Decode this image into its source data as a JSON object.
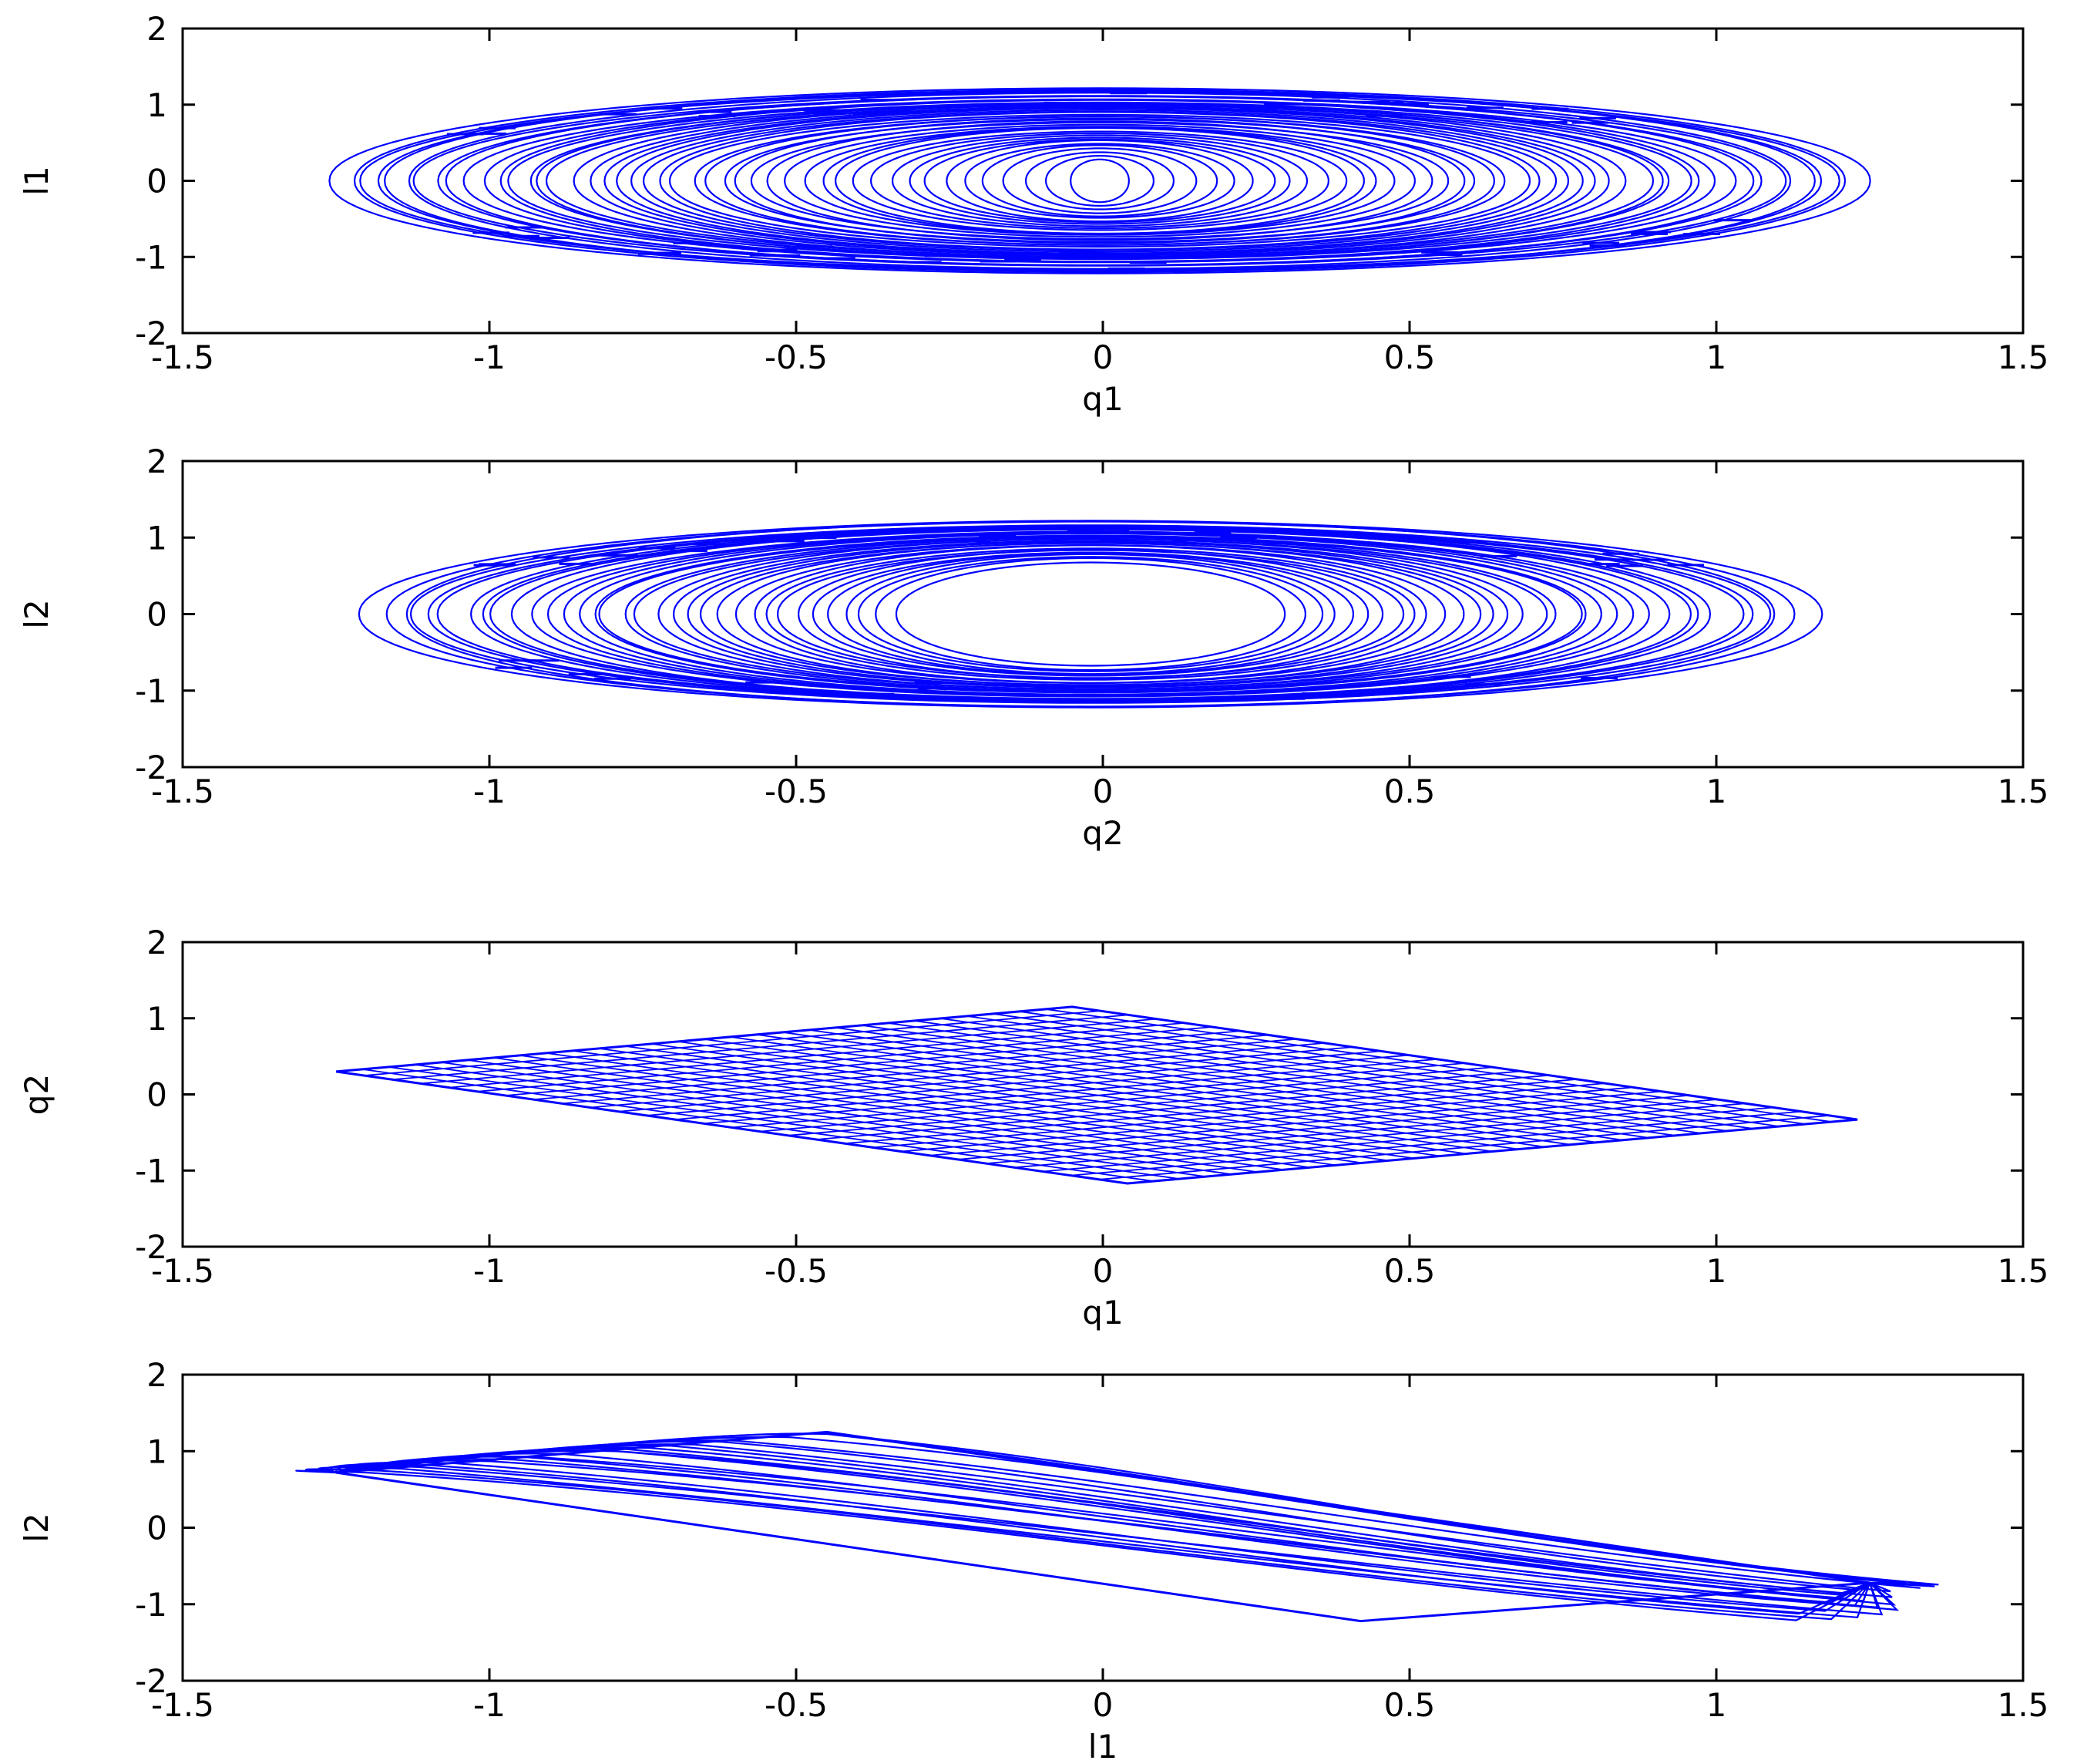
{
  "chart_data": [
    {
      "type": "line",
      "title": "",
      "xlabel": "q1",
      "ylabel": "l1",
      "xlim": [
        -1.5,
        1.5
      ],
      "ylim": [
        -2,
        2
      ],
      "xticks": [
        -1.5,
        -1,
        -0.5,
        0,
        0.5,
        1,
        1.5
      ],
      "xticklabels": [
        "-1.5",
        "-1",
        "-0.5",
        "0",
        "0.5",
        "1",
        "1.5"
      ],
      "yticks": [
        -2,
        -1,
        0,
        1,
        2
      ],
      "yticklabels": [
        "-2",
        "-1",
        "0",
        "1",
        "2"
      ],
      "grid": false,
      "color": "#0000ff",
      "series": [
        {
          "pattern": "nested ellipses filling the region",
          "x_range": [
            -1.25,
            1.24
          ],
          "y_range": [
            -1.22,
            1.22
          ],
          "x": [
            0,
            0.62,
            1.0,
            1.24,
            1.0,
            0.62,
            0,
            -0.62,
            -1.0,
            -1.25,
            -1.0,
            -0.62,
            0
          ],
          "y": [
            1.22,
            1.05,
            0.71,
            0,
            -0.71,
            -1.05,
            -1.22,
            -1.05,
            -0.71,
            0,
            0.71,
            1.05,
            1.22
          ]
        }
      ]
    },
    {
      "type": "line",
      "title": "",
      "xlabel": "q2",
      "ylabel": "l2",
      "xlim": [
        -1.5,
        1.5
      ],
      "ylim": [
        -2,
        2
      ],
      "xticks": [
        -1.5,
        -1,
        -0.5,
        0,
        0.5,
        1,
        1.5
      ],
      "xticklabels": [
        "-1.5",
        "-1",
        "-0.5",
        "0",
        "0.5",
        "1",
        "1.5"
      ],
      "yticks": [
        -2,
        -1,
        0,
        1,
        2
      ],
      "yticklabels": [
        "-2",
        "-1",
        "0",
        "1",
        "2"
      ],
      "grid": false,
      "color": "#0000ff",
      "series": [
        {
          "pattern": "annulus of nested ellipses with empty center",
          "x_range": [
            -1.2,
            1.16
          ],
          "y_range": [
            -1.22,
            1.22
          ],
          "hole": {
            "x": [
              -0.3,
              0.3
            ],
            "y": [
              -0.65,
              0.65
            ]
          },
          "x": [
            0,
            0.58,
            0.94,
            1.16,
            0.94,
            0.58,
            0,
            -0.6,
            -0.97,
            -1.2,
            -0.97,
            -0.6,
            0
          ],
          "y": [
            1.22,
            1.05,
            0.71,
            0,
            -0.71,
            -1.05,
            -1.22,
            -1.05,
            -0.71,
            0,
            0.71,
            1.05,
            1.22
          ]
        }
      ]
    },
    {
      "type": "line",
      "title": "",
      "xlabel": "q1",
      "ylabel": "q2",
      "xlim": [
        -1.5,
        1.5
      ],
      "ylim": [
        -2,
        2
      ],
      "xticks": [
        -1.5,
        -1,
        -0.5,
        0,
        0.5,
        1,
        1.5
      ],
      "xticklabels": [
        "-1.5",
        "-1",
        "-0.5",
        "0",
        "0.5",
        "1",
        "1.5"
      ],
      "yticks": [
        -2,
        -1,
        0,
        1,
        2
      ],
      "yticklabels": [
        "-2",
        "-1",
        "0",
        "1",
        "2"
      ],
      "grid": false,
      "color": "#0000ff",
      "series": [
        {
          "pattern": "mesh filling a rhombus",
          "x": [
            -1.25,
            -0.05,
            1.23,
            0.04,
            -1.25
          ],
          "y": [
            0.3,
            1.15,
            -0.33,
            -1.17,
            0.3
          ]
        }
      ]
    },
    {
      "type": "line",
      "title": "",
      "xlabel": "l1",
      "ylabel": "l2",
      "xlim": [
        -1.5,
        1.5
      ],
      "ylim": [
        -2,
        2
      ],
      "xticks": [
        -1.5,
        -1,
        -0.5,
        0,
        0.5,
        1,
        1.5
      ],
      "xticklabels": [
        "-1.5",
        "-1",
        "-0.5",
        "0",
        "0.5",
        "1",
        "1.5"
      ],
      "yticks": [
        -2,
        -1,
        0,
        1,
        2
      ],
      "yticklabels": [
        "-2",
        "-1",
        "0",
        "1",
        "2"
      ],
      "grid": false,
      "color": "#0000ff",
      "series": [
        {
          "pattern": "bundle of thin loops along a descending diagonal band",
          "x": [
            -1.25,
            -0.45,
            1.25,
            0.42,
            -1.25
          ],
          "y": [
            0.72,
            1.25,
            -0.72,
            -1.22,
            0.72
          ]
        }
      ]
    }
  ]
}
